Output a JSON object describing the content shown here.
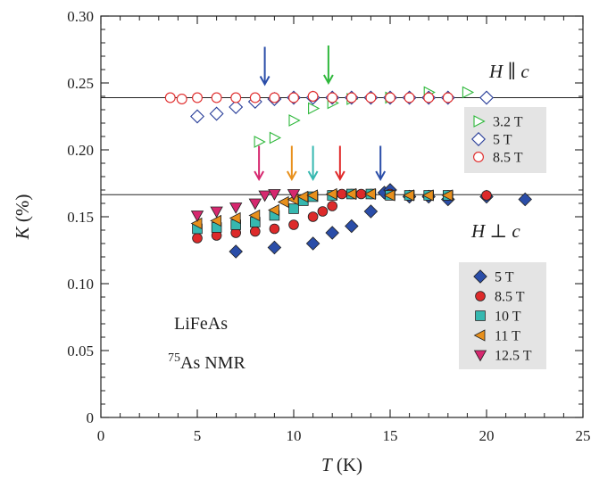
{
  "chart_data": {
    "type": "scatter",
    "title": "",
    "xlabel": "T (K)",
    "xlabel_var": "T",
    "xlabel_unit": " (K)",
    "ylabel": "K (%)",
    "ylabel_var": "K",
    "ylabel_unit": " (%)",
    "xlim": [
      0,
      25
    ],
    "ylim": [
      0,
      0.3
    ],
    "x_ticks": [
      0,
      5,
      10,
      15,
      20,
      25
    ],
    "x_tick_labels": [
      "0",
      "5",
      "10",
      "15",
      "20",
      "25"
    ],
    "y_ticks": [
      0,
      0.05,
      0.1,
      0.15,
      0.2,
      0.25,
      0.3
    ],
    "y_tick_labels": [
      "0",
      "0.05",
      "0.10",
      "0.15",
      "0.20",
      "0.25",
      "0.30"
    ],
    "grid": false,
    "reference_lines": [
      0.239,
      0.1665
    ],
    "annotations": {
      "h_parallel": "H ∥ c",
      "h_perp": "H ⊥ c",
      "sample": "LiFeAs",
      "isotope_sup": "75",
      "nmr": "As NMR"
    },
    "legends": [
      {
        "group": "H ∥ c",
        "placement": "right",
        "entries": [
          "3.2 T",
          "5 T",
          "8.5 T"
        ]
      },
      {
        "group": "H ⊥ c",
        "placement": "bottom-right",
        "entries": [
          "5 T",
          "8.5 T",
          "10 T",
          "11 T",
          "12.5 T"
        ]
      }
    ],
    "series": [
      {
        "name": "3.2 T",
        "group": "parallel",
        "marker": "triangle-right",
        "filled": false,
        "color": "#2fb83c",
        "x": [
          8.2,
          9.0,
          10.0,
          11.0,
          12.0,
          13.0,
          15.0,
          17.0,
          19.0
        ],
        "y": [
          0.206,
          0.209,
          0.222,
          0.231,
          0.235,
          0.238,
          0.239,
          0.243,
          0.243
        ]
      },
      {
        "name": "5 T",
        "group": "parallel",
        "marker": "diamond",
        "filled": false,
        "color": "#2a3f9a",
        "x": [
          5.0,
          6.0,
          7.0,
          8.0,
          9.0,
          10.0,
          11.0,
          12.0,
          13.0,
          14.0,
          15.0,
          16.0,
          17.0,
          18.0,
          20.0
        ],
        "y": [
          0.225,
          0.227,
          0.232,
          0.236,
          0.238,
          0.239,
          0.239,
          0.239,
          0.239,
          0.239,
          0.239,
          0.239,
          0.239,
          0.239,
          0.239
        ]
      },
      {
        "name": "8.5 T",
        "group": "parallel",
        "marker": "circle",
        "filled": false,
        "color": "#e02a2a",
        "x": [
          3.6,
          4.2,
          5.0,
          6.0,
          7.0,
          8.0,
          9.0,
          10.0,
          11.0,
          12.0,
          13.0,
          14.0,
          15.0,
          16.0,
          17.0,
          18.0
        ],
        "y": [
          0.239,
          0.238,
          0.239,
          0.239,
          0.239,
          0.239,
          0.239,
          0.239,
          0.24,
          0.239,
          0.239,
          0.239,
          0.239,
          0.239,
          0.239,
          0.239
        ]
      },
      {
        "name": "5 T",
        "group": "perp",
        "marker": "diamond",
        "filled": true,
        "color": "#2a4da8",
        "x": [
          7.0,
          9.0,
          11.0,
          12.0,
          13.0,
          14.0,
          14.7,
          15.0,
          16.0,
          17.0,
          18.0,
          20.0,
          22.0
        ],
        "y": [
          0.124,
          0.127,
          0.13,
          0.138,
          0.143,
          0.154,
          0.168,
          0.17,
          0.165,
          0.165,
          0.163,
          0.165,
          0.163
        ]
      },
      {
        "name": "8.5 T",
        "group": "perp",
        "marker": "circle",
        "filled": true,
        "color": "#dd2a2a",
        "x": [
          5.0,
          6.0,
          7.0,
          8.0,
          9.0,
          10.0,
          11.0,
          11.5,
          12.0,
          12.5,
          13.0,
          13.5,
          14.0,
          15.0,
          16.0,
          17.0,
          18.0,
          20.0
        ],
        "y": [
          0.134,
          0.136,
          0.138,
          0.139,
          0.141,
          0.144,
          0.15,
          0.154,
          0.158,
          0.167,
          0.167,
          0.167,
          0.167,
          0.167,
          0.166,
          0.166,
          0.166,
          0.166
        ]
      },
      {
        "name": "10 T",
        "group": "perp",
        "marker": "square",
        "filled": true,
        "color": "#36b8b0",
        "x": [
          5.0,
          6.0,
          7.0,
          8.0,
          9.0,
          10.0,
          10.5,
          11.0,
          12.0,
          13.0,
          14.0,
          15.0,
          16.0,
          17.0,
          18.0
        ],
        "y": [
          0.141,
          0.142,
          0.144,
          0.146,
          0.151,
          0.156,
          0.162,
          0.165,
          0.166,
          0.167,
          0.167,
          0.166,
          0.166,
          0.166,
          0.166
        ]
      },
      {
        "name": "11 T",
        "group": "perp",
        "marker": "triangle-left",
        "filled": true,
        "color": "#e8901c",
        "x": [
          5.0,
          6.0,
          7.0,
          8.0,
          9.0,
          9.5,
          10.0,
          10.5,
          11.0,
          12.0,
          13.0,
          14.0,
          15.0,
          16.0,
          17.0,
          18.0
        ],
        "y": [
          0.145,
          0.147,
          0.149,
          0.151,
          0.155,
          0.161,
          0.163,
          0.165,
          0.166,
          0.167,
          0.167,
          0.167,
          0.166,
          0.166,
          0.166,
          0.166
        ]
      },
      {
        "name": "12.5 T",
        "group": "perp",
        "marker": "triangle-down",
        "filled": true,
        "color": "#d6286f",
        "x": [
          5.0,
          6.0,
          7.0,
          8.0,
          8.5,
          9.0,
          10.0
        ],
        "y": [
          0.151,
          0.154,
          0.157,
          0.16,
          0.166,
          0.167,
          0.167
        ]
      }
    ],
    "arrows": [
      {
        "color": "#2a4da8",
        "x": 8.5,
        "y_tip": 0.249,
        "y_tail": 0.277
      },
      {
        "color": "#2fb83c",
        "x": 11.8,
        "y_tip": 0.25,
        "y_tail": 0.278
      },
      {
        "color": "#d6286f",
        "x": 8.2,
        "y_tip": 0.178,
        "y_tail": 0.203
      },
      {
        "color": "#e8901c",
        "x": 9.9,
        "y_tip": 0.178,
        "y_tail": 0.203
      },
      {
        "color": "#36b8b0",
        "x": 11.0,
        "y_tip": 0.178,
        "y_tail": 0.203
      },
      {
        "color": "#e02a2a",
        "x": 12.4,
        "y_tip": 0.178,
        "y_tail": 0.203
      },
      {
        "color": "#2a4da8",
        "x": 14.5,
        "y_tip": 0.178,
        "y_tail": 0.203
      }
    ]
  }
}
